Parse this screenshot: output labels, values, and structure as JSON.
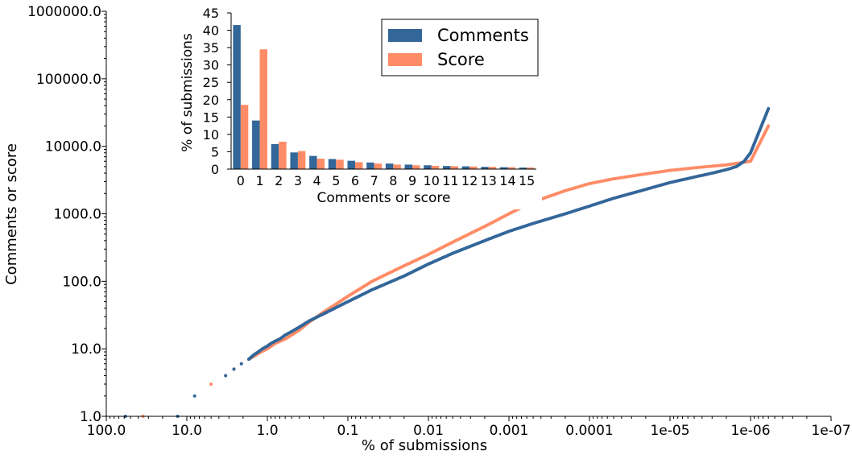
{
  "chart_data": [
    {
      "type": "scatter",
      "xlabel": "% of submissions",
      "ylabel": "Comments or score",
      "x_scale": "log",
      "y_scale": "log",
      "x_reversed": true,
      "xlim": [
        100.0,
        1e-07
      ],
      "ylim": [
        1.0,
        1000000.0
      ],
      "x_ticks": [
        "100.0",
        "10.0",
        "1.0",
        "0.1",
        "0.01",
        "0.001",
        "0.0001",
        "1e-05",
        "1e-06",
        "1e-07"
      ],
      "y_ticks": [
        "1.0",
        "10.0",
        "100.0",
        "1000.0",
        "10000.0",
        "100000.0",
        "1000000.0"
      ],
      "grid": false,
      "series": [
        {
          "name": "Comments",
          "color": "#336699",
          "points": [
            [
              58,
              1
            ],
            [
              13,
              1
            ],
            [
              8,
              2
            ],
            [
              3.3,
              4
            ],
            [
              2.6,
              5
            ],
            [
              2.1,
              6
            ],
            [
              1.7,
              7
            ],
            [
              1.5,
              8
            ],
            [
              1.3,
              9
            ],
            [
              1.15,
              10
            ],
            [
              1.0,
              11
            ],
            [
              0.9,
              12
            ],
            [
              0.8,
              13
            ],
            [
              0.7,
              14
            ],
            [
              0.6,
              16
            ],
            [
              0.5,
              18
            ],
            [
              0.4,
              21
            ],
            [
              0.3,
              26
            ],
            [
              0.2,
              33
            ],
            [
              0.1,
              50
            ],
            [
              0.05,
              75
            ],
            [
              0.02,
              120
            ],
            [
              0.01,
              180
            ],
            [
              0.005,
              260
            ],
            [
              0.002,
              400
            ],
            [
              0.001,
              550
            ],
            [
              0.0005,
              720
            ],
            [
              0.0002,
              1000
            ],
            [
              0.0001,
              1300
            ],
            [
              5e-05,
              1700
            ],
            [
              2e-05,
              2300
            ],
            [
              1e-05,
              2900
            ],
            [
              5e-06,
              3500
            ],
            [
              3e-06,
              4000
            ],
            [
              2e-06,
              4500
            ],
            [
              1.5e-06,
              5000
            ],
            [
              1.2e-06,
              6000
            ],
            [
              1e-06,
              8000
            ],
            [
              6e-07,
              36000
            ]
          ]
        },
        {
          "name": "Score",
          "color": "#ff8c66",
          "points": [
            [
              35,
              1
            ],
            [
              5,
              3
            ],
            [
              3.3,
              4
            ],
            [
              2.6,
              5
            ],
            [
              2.1,
              6
            ],
            [
              1.7,
              7
            ],
            [
              1.4,
              8
            ],
            [
              1.2,
              9
            ],
            [
              1.0,
              10
            ],
            [
              0.8,
              12
            ],
            [
              0.6,
              14
            ],
            [
              0.5,
              16
            ],
            [
              0.4,
              19
            ],
            [
              0.3,
              25
            ],
            [
              0.2,
              35
            ],
            [
              0.1,
              60
            ],
            [
              0.05,
              100
            ],
            [
              0.02,
              170
            ],
            [
              0.01,
              250
            ],
            [
              0.005,
              380
            ],
            [
              0.002,
              650
            ],
            [
              0.001,
              1000
            ],
            [
              0.0005,
              1500
            ],
            [
              0.0002,
              2200
            ],
            [
              0.0001,
              2800
            ],
            [
              5e-05,
              3300
            ],
            [
              2e-05,
              3900
            ],
            [
              1e-05,
              4400
            ],
            [
              5e-06,
              4800
            ],
            [
              2e-06,
              5300
            ],
            [
              1e-06,
              6000
            ],
            [
              6e-07,
              20000
            ]
          ]
        }
      ]
    },
    {
      "type": "bar",
      "xlabel": "Comments or score",
      "ylabel": "% of submissions",
      "ylim": [
        0,
        45
      ],
      "y_ticks": [
        "0",
        "5",
        "10",
        "15",
        "20",
        "25",
        "30",
        "35",
        "40",
        "45"
      ],
      "categories": [
        "0",
        "1",
        "2",
        "3",
        "4",
        "5",
        "6",
        "7",
        "8",
        "9",
        "10",
        "11",
        "12",
        "13",
        "14",
        "15"
      ],
      "legend_position": "top-right",
      "grid": false,
      "series": [
        {
          "name": "Comments",
          "color": "#336699",
          "values": [
            41.5,
            14.0,
            7.2,
            4.8,
            3.8,
            2.9,
            2.4,
            1.9,
            1.6,
            1.3,
            1.1,
            0.9,
            0.8,
            0.65,
            0.55,
            0.45
          ]
        },
        {
          "name": "Score",
          "color": "#ff8c66",
          "values": [
            18.5,
            34.5,
            7.9,
            5.2,
            3.0,
            2.7,
            2.0,
            1.6,
            1.3,
            1.1,
            0.95,
            0.85,
            0.75,
            0.65,
            0.55,
            0.45
          ]
        }
      ]
    }
  ]
}
